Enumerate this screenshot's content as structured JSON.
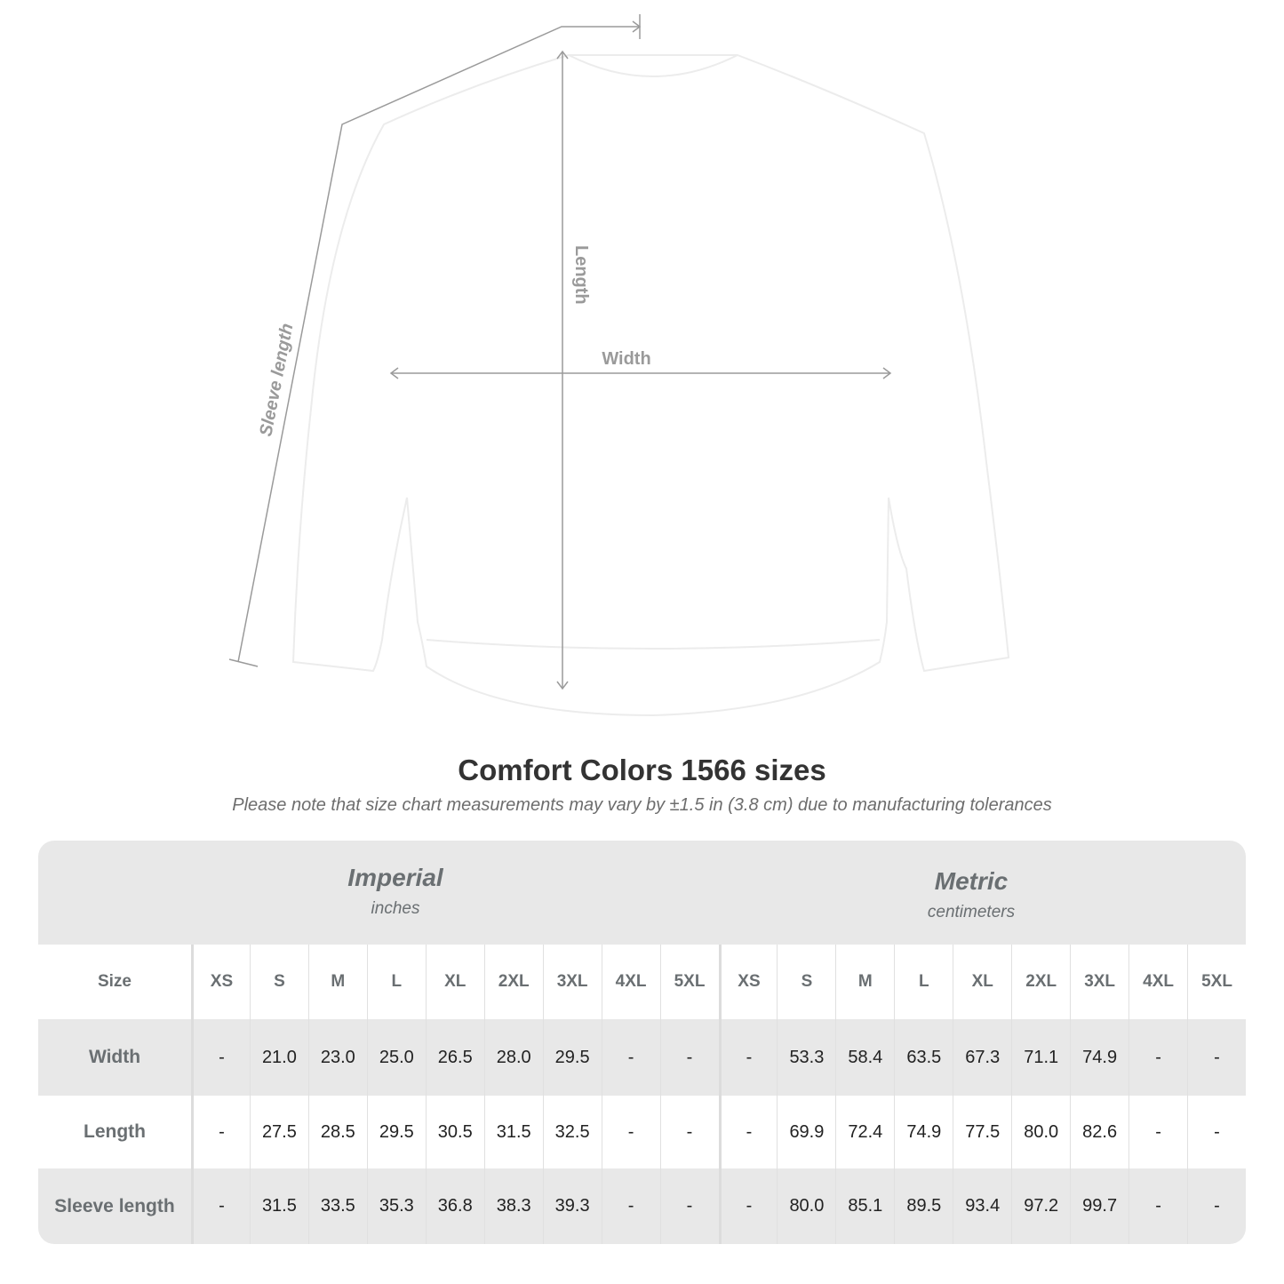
{
  "diagram": {
    "labels": {
      "length": "Length",
      "width": "Width",
      "sleeve": "Sleeve length"
    },
    "line_color": "#9a9a9a"
  },
  "title": "Comfort Colors 1566 sizes",
  "note": "Please note that size chart measurements may vary by ±1.5 in (3.8 cm) due to manufacturing tolerances",
  "table": {
    "imperial": {
      "name": "Imperial",
      "unit": "inches"
    },
    "metric": {
      "name": "Metric",
      "unit": "centimeters"
    },
    "size_label": "Size",
    "sizes": [
      "XS",
      "S",
      "M",
      "L",
      "XL",
      "2XL",
      "3XL",
      "4XL",
      "5XL"
    ],
    "rows": [
      {
        "label": "Width",
        "imperial": [
          "-",
          "21.0",
          "23.0",
          "25.0",
          "26.5",
          "28.0",
          "29.5",
          "-",
          "-"
        ],
        "metric": [
          "-",
          "53.3",
          "58.4",
          "63.5",
          "67.3",
          "71.1",
          "74.9",
          "-",
          "-"
        ]
      },
      {
        "label": "Length",
        "imperial": [
          "-",
          "27.5",
          "28.5",
          "29.5",
          "30.5",
          "31.5",
          "32.5",
          "-",
          "-"
        ],
        "metric": [
          "-",
          "69.9",
          "72.4",
          "74.9",
          "77.5",
          "80.0",
          "82.6",
          "-",
          "-"
        ]
      },
      {
        "label": "Sleeve length",
        "imperial": [
          "-",
          "31.5",
          "33.5",
          "35.3",
          "36.8",
          "38.3",
          "39.3",
          "-",
          "-"
        ],
        "metric": [
          "-",
          "80.0",
          "85.1",
          "89.5",
          "93.4",
          "97.2",
          "99.7",
          "-",
          "-"
        ]
      }
    ]
  }
}
